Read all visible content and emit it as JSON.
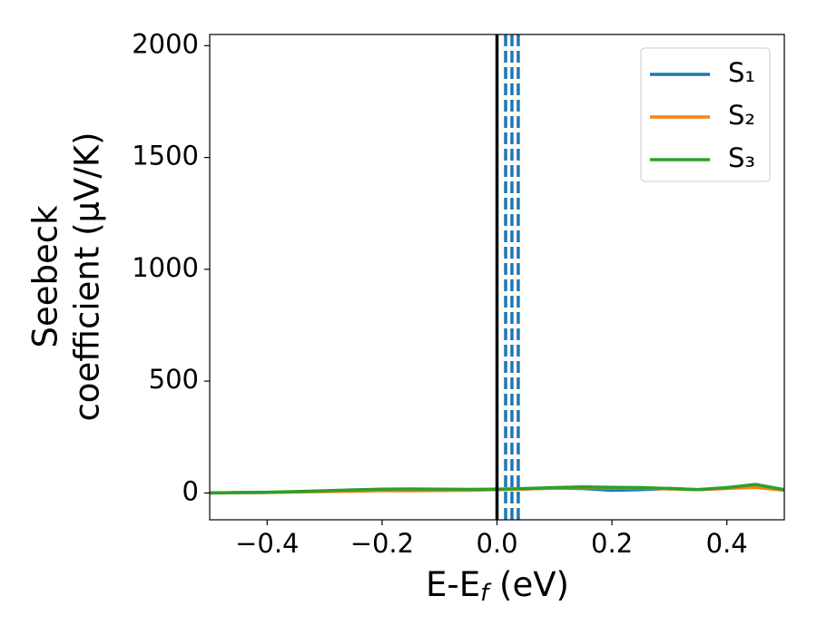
{
  "chart_data": {
    "type": "line",
    "ylabel": [
      "Seebeck",
      "coefficient  (μV/K)"
    ],
    "xlabel": [
      "E-E",
      "f",
      " (eV)"
    ],
    "x": [
      -0.5,
      -0.45,
      -0.4,
      -0.35,
      -0.3,
      -0.25,
      -0.2,
      -0.15,
      -0.1,
      -0.05,
      0,
      0.05,
      0.1,
      0.15,
      0.2,
      0.25,
      0.3,
      0.35,
      0.4,
      0.45,
      0.5
    ],
    "series": [
      {
        "name": "S₁",
        "color": "#1f77b4",
        "values": [
          0,
          1,
          2,
          5,
          8,
          11,
          14,
          15,
          15,
          15,
          16,
          18,
          22,
          20,
          12,
          15,
          20,
          15,
          22,
          32,
          15
        ]
      },
      {
        "name": "S₂",
        "color": "#ff7f0e",
        "values": [
          0,
          1,
          2,
          4,
          6,
          8,
          10,
          10,
          11,
          12,
          15,
          18,
          22,
          24,
          22,
          22,
          18,
          15,
          20,
          25,
          12
        ]
      },
      {
        "name": "S₃",
        "color": "#2ca02c",
        "values": [
          0,
          2,
          3,
          6,
          10,
          14,
          17,
          18,
          17,
          16,
          17,
          20,
          24,
          27,
          25,
          24,
          20,
          15,
          24,
          38,
          15
        ]
      }
    ],
    "vlines": [
      {
        "x": 0,
        "color": "#000000",
        "style": "solid"
      },
      {
        "x": 0.015,
        "color": "#1f77b4",
        "style": "dashed"
      },
      {
        "x": 0.026,
        "color": "#1f77b4",
        "style": "dashed"
      },
      {
        "x": 0.037,
        "color": "#1f77b4",
        "style": "dashed"
      }
    ],
    "xlim": [
      -0.5,
      0.5
    ],
    "ylim": [
      -120,
      2050
    ],
    "xticks": [
      {
        "value": -0.4,
        "label": "−0.4"
      },
      {
        "value": -0.2,
        "label": "−0.2"
      },
      {
        "value": 0,
        "label": "0.0"
      },
      {
        "value": 0.2,
        "label": "0.2"
      },
      {
        "value": 0.4,
        "label": "0.4"
      }
    ],
    "yticks": [
      0,
      500,
      1000,
      1500,
      2000
    ],
    "legend": "upper right"
  }
}
